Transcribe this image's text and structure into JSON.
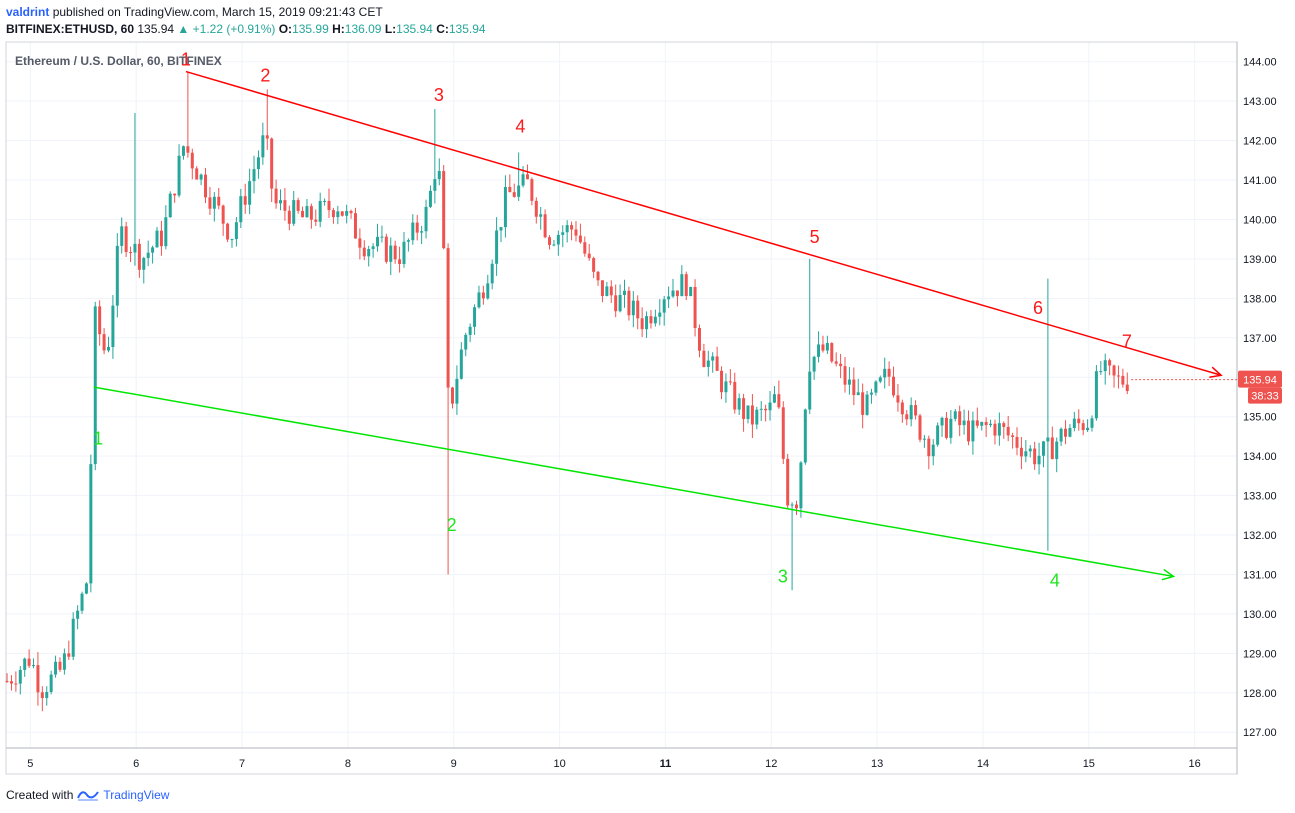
{
  "header": {
    "user": "valdrint",
    "published_text": "published on TradingView.com, March 15, 2019 09:21:43 CET",
    "symbol": "BITFINEX:ETHUSD, 60",
    "last": "135.94",
    "change": "+1.22 (+0.91%)",
    "o_label": "O:",
    "o": "135.99",
    "h_label": "H:",
    "h": "136.09",
    "l_label": "L:",
    "l": "135.94",
    "c_label": "C:",
    "c": "135.94"
  },
  "footer": {
    "created_with": "Created with",
    "brand": "TradingView"
  },
  "chart_data": {
    "type": "candlestick",
    "title": "Ethereum / U.S. Dollar, 60, BITFINEX",
    "ylim": [
      126.6,
      144.5
    ],
    "xlim": [
      4.77,
      16.4
    ],
    "y_ticks": [
      "127.00",
      "128.00",
      "129.00",
      "130.00",
      "131.00",
      "132.00",
      "133.00",
      "134.00",
      "135.00",
      "136.00",
      "137.00",
      "138.00",
      "139.00",
      "140.00",
      "141.00",
      "142.00",
      "143.00",
      "144.00"
    ],
    "x_ticks": [
      "5",
      "6",
      "7",
      "8",
      "9",
      "10",
      "11",
      "12",
      "13",
      "14",
      "15",
      "16"
    ],
    "price_label": "135.94",
    "countdown_label": "38:33",
    "colors": {
      "up": "#26a69a",
      "down": "#ef5350",
      "resistance": "#ff0000",
      "support": "#00e600"
    },
    "waypoints": [
      [
        4.78,
        128.3
      ],
      [
        5.0,
        128.9
      ],
      [
        5.1,
        128.1
      ],
      [
        5.3,
        128.6
      ],
      [
        5.55,
        131.0
      ],
      [
        5.6,
        137.6
      ],
      [
        5.72,
        136.5
      ],
      [
        5.85,
        139.7
      ],
      [
        6.05,
        139.0
      ],
      [
        6.25,
        139.6
      ],
      [
        6.45,
        141.9
      ],
      [
        6.7,
        140.6
      ],
      [
        6.9,
        139.6
      ],
      [
        7.15,
        141.6
      ],
      [
        7.22,
        142.1
      ],
      [
        7.3,
        140.4
      ],
      [
        7.6,
        140.0
      ],
      [
        7.9,
        140.4
      ],
      [
        8.15,
        139.4
      ],
      [
        8.5,
        139.1
      ],
      [
        8.75,
        140.2
      ],
      [
        8.85,
        141.7
      ],
      [
        8.93,
        137.8
      ],
      [
        8.95,
        135.0
      ],
      [
        9.1,
        137.0
      ],
      [
        9.3,
        138.5
      ],
      [
        9.5,
        140.6
      ],
      [
        9.7,
        140.9
      ],
      [
        9.9,
        139.6
      ],
      [
        10.15,
        139.8
      ],
      [
        10.35,
        138.3
      ],
      [
        10.6,
        137.9
      ],
      [
        10.8,
        137.4
      ],
      [
        11.0,
        138.2
      ],
      [
        11.2,
        138.4
      ],
      [
        11.35,
        136.6
      ],
      [
        11.6,
        135.6
      ],
      [
        11.8,
        134.9
      ],
      [
        12.0,
        135.2
      ],
      [
        12.05,
        135.6
      ],
      [
        12.15,
        133.0
      ],
      [
        12.25,
        132.9
      ],
      [
        12.35,
        136.4
      ],
      [
        12.5,
        136.7
      ],
      [
        12.7,
        135.9
      ],
      [
        12.9,
        135.2
      ],
      [
        13.1,
        136.1
      ],
      [
        13.3,
        135.1
      ],
      [
        13.5,
        134.3
      ],
      [
        13.7,
        134.9
      ],
      [
        13.9,
        134.6
      ],
      [
        14.1,
        134.8
      ],
      [
        14.3,
        134.4
      ],
      [
        14.5,
        134.0
      ],
      [
        14.6,
        134.1
      ],
      [
        14.7,
        134.4
      ],
      [
        14.8,
        134.7
      ],
      [
        15.0,
        134.9
      ],
      [
        15.1,
        136.2
      ],
      [
        15.25,
        135.9
      ],
      [
        15.4,
        135.94
      ]
    ],
    "spikes": [
      {
        "x": 6.48,
        "high": 143.75
      },
      {
        "x": 7.22,
        "high": 143.3
      },
      {
        "x": 8.83,
        "high": 142.8
      },
      {
        "x": 8.93,
        "low": 131.0
      },
      {
        "x": 9.62,
        "high": 141.7
      },
      {
        "x": 12.18,
        "low": 130.6
      },
      {
        "x": 12.36,
        "high": 139.0
      },
      {
        "x": 14.62,
        "high": 138.5,
        "low": 131.6
      },
      {
        "x": 5.98,
        "high": 142.7
      }
    ],
    "trendlines": [
      {
        "name": "resistance",
        "from": [
          6.47,
          143.75
        ],
        "to": [
          16.25,
          136.05
        ]
      },
      {
        "name": "support",
        "from": [
          5.6,
          135.75
        ],
        "to": [
          15.8,
          130.95
        ]
      }
    ],
    "annotations": [
      {
        "text": "1",
        "x": 6.47,
        "y": 143.9,
        "color": "red"
      },
      {
        "text": "2",
        "x": 7.22,
        "y": 143.5,
        "color": "red"
      },
      {
        "text": "3",
        "x": 8.86,
        "y": 143.0,
        "color": "red"
      },
      {
        "text": "4",
        "x": 9.63,
        "y": 142.2,
        "color": "red"
      },
      {
        "text": "5",
        "x": 12.41,
        "y": 139.4,
        "color": "red"
      },
      {
        "text": "6",
        "x": 14.52,
        "y": 137.6,
        "color": "red"
      },
      {
        "text": "7",
        "x": 15.36,
        "y": 136.75,
        "color": "red"
      },
      {
        "text": "1",
        "x": 5.64,
        "y": 134.3,
        "color": "green"
      },
      {
        "text": "2",
        "x": 8.98,
        "y": 132.1,
        "color": "green"
      },
      {
        "text": "3",
        "x": 12.11,
        "y": 130.8,
        "color": "green"
      },
      {
        "text": "4",
        "x": 14.68,
        "y": 130.7,
        "color": "green"
      }
    ]
  }
}
